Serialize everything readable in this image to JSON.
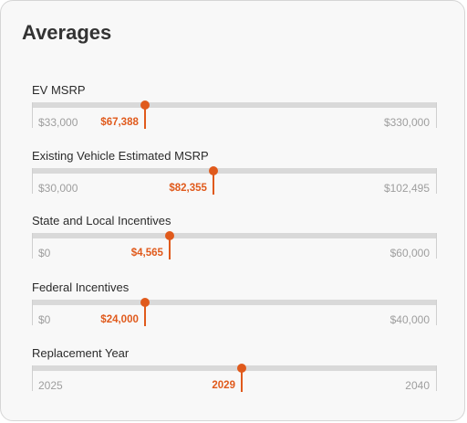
{
  "title": "Averages",
  "accent_color": "#e05a1c",
  "rows": [
    {
      "label": "EV MSRP",
      "min": "$33,000",
      "max": "$330,000",
      "value": "$67,388",
      "fraction": 0.279
    },
    {
      "label": "Existing Vehicle Estimated MSRP",
      "min": "$30,000",
      "max": "$102,495",
      "value": "$82,355",
      "fraction": 0.448
    },
    {
      "label": "State and Local Incentives",
      "min": "$0",
      "max": "$60,000",
      "value": "$4,565",
      "fraction": 0.34
    },
    {
      "label": "Federal Incentives",
      "min": "$0",
      "max": "$40,000",
      "value": "$24,000",
      "fraction": 0.279
    },
    {
      "label": "Replacement Year",
      "min": "2025",
      "max": "2040",
      "value": "2029",
      "fraction": 0.518
    }
  ]
}
